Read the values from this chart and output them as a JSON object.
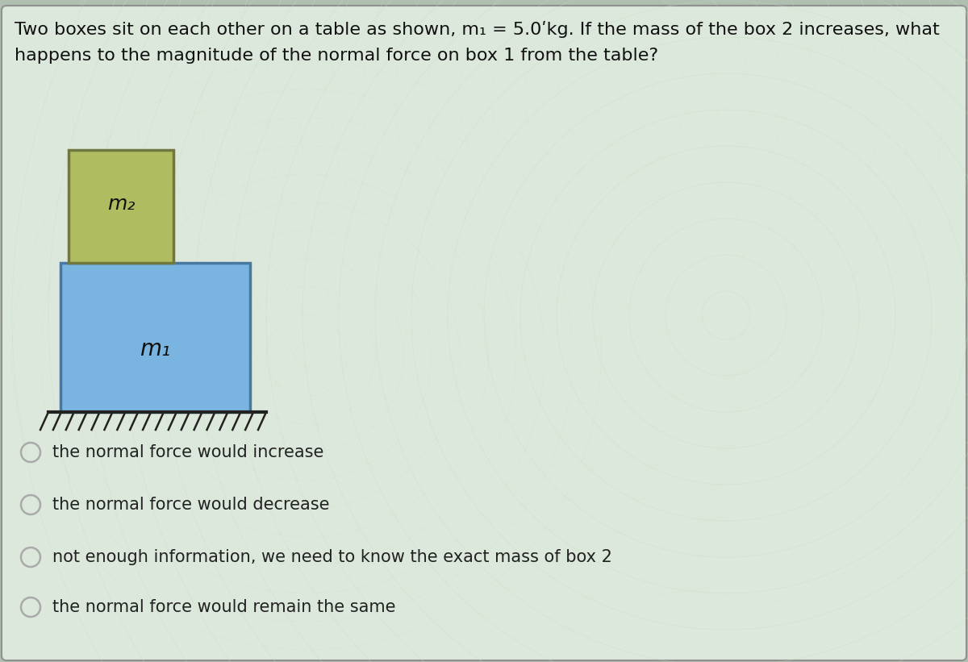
{
  "title_line1": "Two boxes sit on each other on a table as shown, m₁ = 5.0ʹkg. If the mass of the box 2 increases, what",
  "title_line2": "happens to the magnitude of the normal force on box 1 from the table?",
  "bg_outer": "#b0bfb0",
  "bg_card": "#dce8dc",
  "swirl_color1": "#c8dcc8",
  "swirl_color2": "#d4e8d4",
  "box1_facecolor": "#7ab4e0",
  "box1_edgecolor": "#4878a0",
  "box2_facecolor": "#b0bc60",
  "box2_edgecolor": "#707840",
  "table_color": "#222222",
  "hatch_color": "#222222",
  "text_color": "#111111",
  "option_color": "#222222",
  "circle_color": "#aaaaaa",
  "m1_label": "m₁",
  "m2_label": "m₂",
  "options": [
    "the normal force would increase",
    "the normal force would decrease",
    "not enough information, we need to know the exact mass of box 2",
    "the normal force would remain the same"
  ],
  "title_fontsize": 16,
  "option_fontsize": 15,
  "label_fontsize": 20
}
